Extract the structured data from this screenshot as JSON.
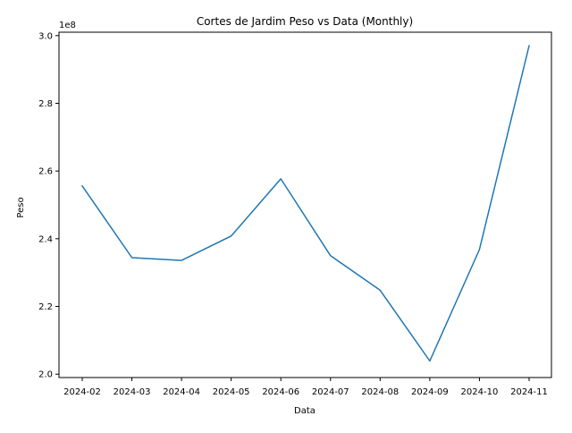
{
  "chart_data": {
    "type": "line",
    "title": "Cortes de Jardim Peso vs Data (Monthly)",
    "xlabel": "Data",
    "ylabel": "Peso",
    "y_multiplier_label": "1e8",
    "y_scale": 100000000,
    "ylim": [
      1.99,
      3.01
    ],
    "y_ticks": [
      2.0,
      2.2,
      2.4,
      2.6,
      2.8,
      3.0
    ],
    "y_tick_labels": [
      "2.0",
      "2.2",
      "2.4",
      "2.6",
      "2.8",
      "3.0"
    ],
    "x_ticks": [
      "2024-02",
      "2024-03",
      "2024-04",
      "2024-05",
      "2024-06",
      "2024-07",
      "2024-08",
      "2024-09",
      "2024-10",
      "2024-11"
    ],
    "grid": false,
    "line_color": "#1f77b4",
    "series": [
      {
        "x": [
          "2024-02",
          "2024-03",
          "2024-04",
          "2024-05",
          "2024-06",
          "2024-07",
          "2024-08",
          "2024-09",
          "2024-10",
          "2024-11"
        ],
        "values": [
          2.556,
          2.344,
          2.336,
          2.408,
          2.577,
          2.35,
          2.248,
          2.039,
          2.368,
          2.97
        ]
      }
    ]
  }
}
